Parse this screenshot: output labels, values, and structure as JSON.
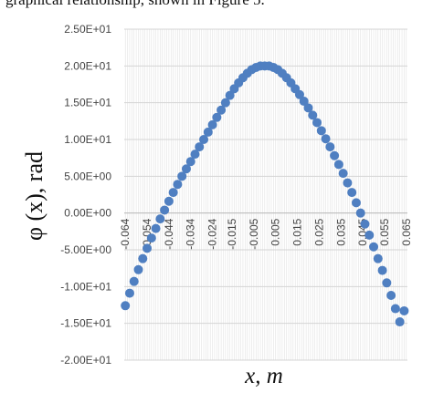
{
  "page": {
    "caption_fragment": "graphical relationship, shown in Figure 5."
  },
  "chart_data": {
    "type": "scatter",
    "title": "",
    "xlabel": "x, m",
    "ylabel": "φ (x), rad",
    "xlim": [
      -0.0645,
      0.0655
    ],
    "ylim": [
      -20,
      25
    ],
    "grid": true,
    "legend": "none",
    "marker_color": "#4f7fc1",
    "y_ticks": [
      {
        "value": 25,
        "label": "2.50E+01"
      },
      {
        "value": 20,
        "label": "2.00E+01"
      },
      {
        "value": 15,
        "label": "1.50E+01"
      },
      {
        "value": 10,
        "label": "1.00E+01"
      },
      {
        "value": 5,
        "label": "5.00E+00"
      },
      {
        "value": 0,
        "label": "0.00E+00"
      },
      {
        "value": -5,
        "label": "-5.00E+00"
      },
      {
        "value": -10,
        "label": "-1.00E+01"
      },
      {
        "value": -15,
        "label": "-1.50E+01"
      },
      {
        "value": -20,
        "label": "-2.00E+01"
      }
    ],
    "x_ticks": [
      {
        "value": -0.064,
        "label": "-0.064"
      },
      {
        "value": -0.054,
        "label": "-0.054"
      },
      {
        "value": -0.044,
        "label": "-0.044"
      },
      {
        "value": -0.034,
        "label": "-0.034"
      },
      {
        "value": -0.024,
        "label": "-0.024"
      },
      {
        "value": -0.015,
        "label": "-0.015"
      },
      {
        "value": -0.005,
        "label": "-0.005"
      },
      {
        "value": 0.005,
        "label": "0.005"
      },
      {
        "value": 0.015,
        "label": "0.015"
      },
      {
        "value": 0.025,
        "label": "0.025"
      },
      {
        "value": 0.035,
        "label": "0.035"
      },
      {
        "value": 0.045,
        "label": "0.045"
      },
      {
        "value": 0.055,
        "label": "0.055"
      },
      {
        "value": 0.065,
        "label": "0.065"
      }
    ],
    "series": [
      {
        "x": [
          -0.064,
          -0.062,
          -0.06,
          -0.058,
          -0.056,
          -0.054,
          -0.052,
          -0.05,
          -0.048,
          -0.046,
          -0.044,
          -0.042,
          -0.04,
          -0.038,
          -0.036,
          -0.034,
          -0.032,
          -0.03,
          -0.028,
          -0.026,
          -0.024,
          -0.022,
          -0.02,
          -0.018,
          -0.016,
          -0.014,
          -0.012,
          -0.01,
          -0.008,
          -0.006,
          -0.004,
          -0.002,
          0.0,
          0.002,
          0.004,
          0.006,
          0.008,
          0.01,
          0.012,
          0.014,
          0.016,
          0.018,
          0.02,
          0.022,
          0.024,
          0.026,
          0.028,
          0.03,
          0.032,
          0.034,
          0.036,
          0.038,
          0.04,
          0.042,
          0.044,
          0.046,
          0.048,
          0.05,
          0.052,
          0.054,
          0.056,
          0.058,
          0.06,
          0.062,
          0.064
        ],
        "y": [
          -12.6,
          -10.9,
          -9.3,
          -7.7,
          -6.2,
          -4.8,
          -3.4,
          -2.1,
          -0.8,
          0.4,
          1.6,
          2.8,
          3.9,
          5.0,
          6.0,
          7.0,
          8.0,
          9.0,
          10.0,
          11.0,
          12.0,
          13.0,
          14.0,
          15.0,
          16.0,
          16.9,
          17.7,
          18.4,
          19.0,
          19.5,
          19.8,
          20.0,
          20.0,
          20.0,
          19.8,
          19.5,
          19.0,
          18.4,
          17.7,
          16.9,
          16.1,
          15.2,
          14.3,
          13.3,
          12.3,
          11.2,
          10.1,
          9.0,
          7.8,
          6.6,
          5.4,
          4.1,
          2.8,
          1.4,
          0.0,
          -1.5,
          -3.0,
          -4.6,
          -6.2,
          -7.8,
          -9.5,
          -11.2,
          -13.0,
          -14.8,
          -13.3
        ]
      }
    ]
  }
}
